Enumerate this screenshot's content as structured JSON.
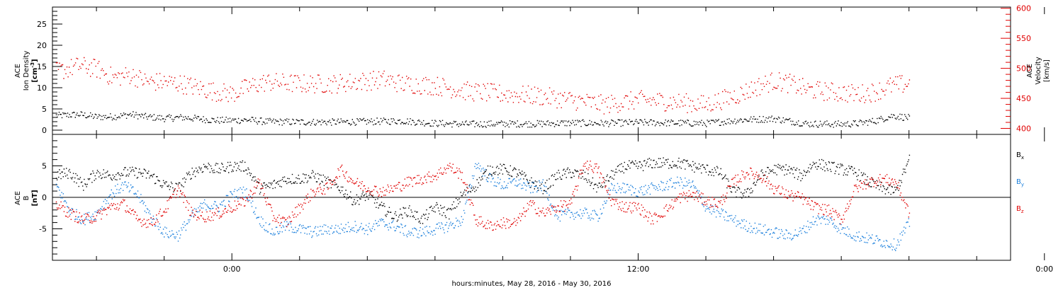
{
  "chart_data": [
    {
      "type": "scatter",
      "title": "",
      "left_axis": {
        "label_lines": [
          "ACE",
          "Ion Density"
        ],
        "unit_text": "[cm",
        "unit_sup": "-3",
        "unit_close": "]",
        "ylim": [
          -1,
          29
        ],
        "ticks": [
          "0",
          "5",
          "10",
          "15",
          "20",
          "25"
        ],
        "tick_values": [
          0,
          5,
          10,
          15,
          20,
          25
        ]
      },
      "right_axis": {
        "label_lines": [
          "ACE",
          "Velocity",
          "[km/s]"
        ],
        "ylim": [
          390,
          602
        ],
        "ticks": [
          "400",
          "450",
          "500",
          "550",
          "600"
        ],
        "tick_values": [
          400,
          450,
          500,
          550,
          600
        ],
        "color": "#e00000"
      },
      "series": [
        {
          "axis": "left",
          "color": "#000000",
          "x": [
            -5.2,
            -4.5,
            -4.0,
            -3.5,
            -3.0,
            -2.5,
            -2.0,
            -1.5,
            -1.0,
            -0.5,
            0.0,
            0.5,
            1.0,
            2.0,
            3.0,
            4.0,
            5.0,
            6.0,
            7.0,
            8.0,
            9.0,
            10.0,
            11.0,
            12.0,
            13.0,
            14.0,
            15.0,
            16.0,
            17.0,
            18.0,
            18.5,
            19.0,
            19.5,
            20.0
          ],
          "y": [
            3.5,
            3.8,
            3.2,
            3.3,
            3.8,
            3.2,
            2.9,
            3.1,
            2.8,
            2.4,
            2.4,
            2.5,
            2.1,
            2.0,
            2.0,
            2.1,
            2.3,
            1.7,
            1.5,
            1.6,
            1.6,
            1.8,
            1.7,
            1.9,
            1.8,
            1.7,
            2.5,
            2.8,
            1.6,
            1.5,
            1.7,
            2.3,
            3.5,
            3.0
          ]
        },
        {
          "axis": "right",
          "color": "#e00000",
          "x": [
            -5.2,
            -4.5,
            -4.0,
            -3.5,
            -3.0,
            -2.5,
            -2.0,
            -1.5,
            -1.0,
            -0.5,
            0.0,
            0.5,
            1.0,
            2.0,
            3.0,
            4.0,
            4.5,
            5.0,
            6.0,
            7.0,
            8.0,
            9.0,
            10.0,
            11.0,
            12.0,
            13.0,
            14.0,
            15.0,
            15.5,
            16.0,
            16.5,
            17.0,
            18.0,
            18.5,
            19.0,
            19.5,
            20.0
          ],
          "y": [
            495,
            505,
            500,
            485,
            490,
            478,
            478,
            475,
            468,
            462,
            458,
            470,
            478,
            475,
            475,
            480,
            482,
            475,
            472,
            462,
            458,
            455,
            448,
            440,
            448,
            445,
            440,
            458,
            470,
            480,
            475,
            465,
            460,
            458,
            462,
            472,
            475
          ]
        }
      ]
    },
    {
      "type": "scatter",
      "left_axis": {
        "label_lines": [
          "ACE",
          "B"
        ],
        "unit_text": "[nT]",
        "ylim": [
          -10,
          10
        ],
        "ticks": [
          "5",
          "0",
          "-5"
        ],
        "tick_values": [
          5,
          0,
          -5
        ]
      },
      "zero_line": true,
      "legend": {
        "placement": "right"
      },
      "series": [
        {
          "name": "B",
          "sub": "x",
          "color": "#000000",
          "x": [
            -5.2,
            -4.8,
            -4.4,
            -4.0,
            -3.6,
            -3.2,
            -2.8,
            -2.4,
            -2.0,
            -1.6,
            -1.2,
            -0.8,
            -0.4,
            0.0,
            0.4,
            0.8,
            1.2,
            1.6,
            2.0,
            2.4,
            2.8,
            3.2,
            3.6,
            4.0,
            4.4,
            4.8,
            5.2,
            5.6,
            6.0,
            6.4,
            6.8,
            7.2,
            7.6,
            8.0,
            8.4,
            8.8,
            9.2,
            9.6,
            10.0,
            10.4,
            10.8,
            11.2,
            11.6,
            12.0,
            12.4,
            12.8,
            13.2,
            13.6,
            14.0,
            14.4,
            14.8,
            15.2,
            15.6,
            16.0,
            16.4,
            16.8,
            17.2,
            17.6,
            18.0,
            18.4,
            18.8,
            19.2,
            19.6,
            20.0
          ],
          "y": [
            3.5,
            4.0,
            2.0,
            4.0,
            3.5,
            4.0,
            4.0,
            3.5,
            2.0,
            1.5,
            4.0,
            5.0,
            4.5,
            5.0,
            5.0,
            1.5,
            2.0,
            3.0,
            3.0,
            3.5,
            2.5,
            1.5,
            -0.5,
            0.5,
            -1.5,
            -3.0,
            -2.0,
            -3.5,
            -1.5,
            -2.5,
            0.5,
            2.0,
            4.5,
            4.5,
            4.0,
            2.5,
            1.5,
            3.5,
            4.0,
            3.5,
            1.5,
            3.5,
            5.0,
            5.0,
            5.5,
            5.5,
            5.5,
            5.0,
            4.5,
            4.0,
            1.0,
            0.5,
            3.5,
            4.5,
            4.5,
            3.5,
            5.5,
            5.0,
            4.5,
            4.0,
            2.5,
            1.5,
            1.0,
            6.0
          ]
        },
        {
          "name": "B",
          "sub": "y",
          "color": "#1a7fdc",
          "x": [
            -5.2,
            -4.8,
            -4.4,
            -4.0,
            -3.6,
            -3.2,
            -2.8,
            -2.4,
            -2.0,
            -1.6,
            -1.2,
            -0.8,
            -0.4,
            0.0,
            0.4,
            0.8,
            1.2,
            1.6,
            2.0,
            2.4,
            2.8,
            3.2,
            3.6,
            4.0,
            4.4,
            4.8,
            5.2,
            5.6,
            6.0,
            6.4,
            6.8,
            7.2,
            7.6,
            8.0,
            8.4,
            8.8,
            9.2,
            9.6,
            10.0,
            10.4,
            10.8,
            11.2,
            11.6,
            12.0,
            12.4,
            12.8,
            13.2,
            13.6,
            14.0,
            14.4,
            14.8,
            15.2,
            15.6,
            16.0,
            16.4,
            16.8,
            17.2,
            17.6,
            18.0,
            18.4,
            18.8,
            19.2,
            19.6,
            20.0
          ],
          "y": [
            2.0,
            -2.0,
            -3.5,
            -2.5,
            0.5,
            2.0,
            0.5,
            -3.0,
            -5.5,
            -6.0,
            -3.0,
            -1.0,
            -1.5,
            0.5,
            1.0,
            -3.5,
            -5.5,
            -4.5,
            -5.0,
            -5.5,
            -5.0,
            -5.0,
            -4.5,
            -5.0,
            -4.0,
            -4.5,
            -5.5,
            -5.5,
            -5.0,
            -4.5,
            -3.5,
            5.5,
            3.0,
            2.0,
            2.5,
            1.5,
            2.0,
            -3.0,
            -2.5,
            -2.5,
            -3.0,
            1.5,
            1.5,
            1.0,
            1.5,
            2.0,
            2.5,
            2.0,
            -1.5,
            -2.5,
            -3.5,
            -4.5,
            -5.0,
            -5.5,
            -6.0,
            -5.5,
            -3.5,
            -3.5,
            -5.0,
            -6.0,
            -6.5,
            -7.0,
            -7.5,
            -4.0
          ]
        },
        {
          "name": "B",
          "sub": "z",
          "color": "#e00000",
          "x": [
            -5.2,
            -4.8,
            -4.4,
            -4.0,
            -3.6,
            -3.2,
            -2.8,
            -2.4,
            -2.0,
            -1.6,
            -1.2,
            -0.8,
            -0.4,
            0.0,
            0.4,
            0.8,
            1.2,
            1.6,
            2.0,
            2.4,
            2.8,
            3.2,
            3.6,
            4.0,
            4.4,
            4.8,
            5.2,
            5.6,
            6.0,
            6.4,
            6.8,
            7.2,
            7.6,
            8.0,
            8.4,
            8.8,
            9.2,
            9.6,
            10.0,
            10.4,
            10.8,
            11.2,
            11.6,
            12.0,
            12.4,
            12.8,
            13.2,
            13.6,
            14.0,
            14.4,
            14.8,
            15.2,
            15.6,
            16.0,
            16.4,
            16.8,
            17.2,
            17.6,
            18.0,
            18.4,
            18.8,
            19.2,
            19.6,
            20.0
          ],
          "y": [
            -1.0,
            -2.5,
            -3.5,
            -3.0,
            -1.5,
            -1.0,
            -3.5,
            -4.0,
            -2.0,
            1.5,
            -2.5,
            -3.0,
            -2.5,
            -1.5,
            -0.5,
            2.5,
            -3.0,
            -4.0,
            -1.5,
            1.0,
            1.5,
            4.5,
            2.5,
            1.5,
            1.0,
            1.5,
            2.5,
            3.0,
            3.5,
            5.0,
            3.5,
            -3.5,
            -4.5,
            -4.0,
            -4.0,
            -1.0,
            -2.5,
            -1.5,
            -1.0,
            5.5,
            4.5,
            -0.5,
            -1.5,
            -1.5,
            -3.5,
            -2.0,
            0.0,
            0.5,
            -0.5,
            -1.0,
            2.5,
            4.0,
            3.5,
            1.5,
            0.5,
            0.0,
            -1.5,
            -2.0,
            -3.5,
            1.5,
            2.5,
            3.0,
            2.5,
            -2.5
          ]
        }
      ]
    }
  ],
  "x_axis": {
    "label": "hours:minutes, May 28, 2016 - May 30, 2016",
    "xlim": [
      -5.3,
      23.0
    ],
    "ticks": [
      "0:00",
      "12:00",
      "0:00"
    ],
    "tick_values": [
      0,
      12,
      24
    ],
    "minor_tick_values": [
      -4,
      -2,
      2,
      4,
      6,
      8,
      10,
      14,
      16,
      18,
      20,
      22
    ]
  }
}
